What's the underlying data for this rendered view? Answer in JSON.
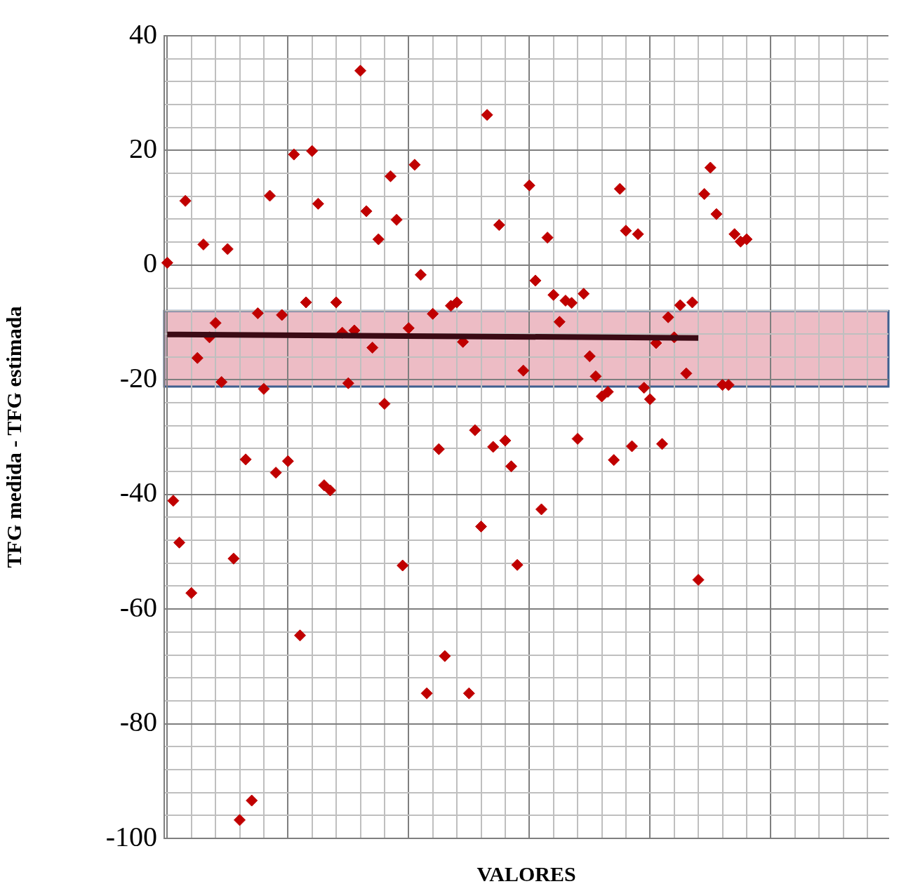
{
  "chart_data": {
    "type": "scatter",
    "xlabel": "VALORES",
    "ylabel": "TFG medida - TFG estimada",
    "categories": [
      null,
      null,
      null,
      null,
      null,
      null,
      null,
      null,
      null,
      null,
      null,
      null,
      null,
      null,
      null,
      null,
      null,
      null,
      null,
      null,
      null,
      null,
      null,
      null,
      null,
      null,
      null,
      null,
      null,
      null,
      null,
      null,
      null,
      null,
      null,
      null,
      null,
      null,
      null,
      null,
      null,
      null,
      null,
      null,
      null,
      null,
      null,
      null,
      null,
      null,
      null,
      null,
      null,
      null,
      null,
      null,
      null,
      null,
      null,
      null,
      null,
      null,
      null,
      null,
      null,
      null,
      null,
      null,
      null,
      null,
      null,
      null,
      null,
      null,
      null,
      null,
      null,
      null,
      null,
      null,
      null,
      null,
      null,
      null,
      null,
      null,
      null,
      null,
      null,
      null,
      null,
      null,
      null,
      null,
      null,
      null,
      null,
      null,
      null,
      null,
      null,
      null,
      null,
      null,
      null,
      null,
      null,
      null,
      null,
      null,
      null,
      null,
      null,
      null,
      null,
      null,
      null,
      null,
      null,
      null
    ],
    "ylim": [
      -100,
      40
    ],
    "yticks": [
      -100,
      {
        "value": -96,
        "label": null
      },
      {
        "value": -92,
        "label": null
      },
      {
        "value": -88,
        "label": null
      },
      {
        "value": -84,
        "label": null
      },
      -80,
      {
        "value": -76,
        "label": null
      },
      {
        "value": -72,
        "label": null
      },
      {
        "value": -68,
        "label": null
      },
      {
        "value": -64,
        "label": null
      },
      -60,
      {
        "value": -56,
        "label": null
      },
      {
        "value": -52,
        "label": null
      },
      {
        "value": -48,
        "label": null
      },
      {
        "value": -44,
        "label": null
      },
      -40,
      {
        "value": -36,
        "label": null
      },
      {
        "value": -32,
        "label": null
      },
      {
        "value": -28,
        "label": null
      },
      {
        "value": -24,
        "label": null
      },
      -20,
      {
        "value": -16,
        "label": null
      },
      {
        "value": -12,
        "label": null
      },
      {
        "value": -8,
        "label": null
      },
      {
        "value": -4,
        "label": null
      },
      0,
      {
        "value": 4,
        "label": null
      },
      {
        "value": 8,
        "label": null
      },
      {
        "value": 12,
        "label": null
      },
      {
        "value": 16,
        "label": null
      },
      20,
      {
        "value": 24,
        "label": null
      },
      {
        "value": 28,
        "label": null
      },
      {
        "value": 32,
        "label": null
      },
      {
        "value": 36,
        "label": null
      },
      40
    ],
    "tick_labels": "y",
    "grid": true,
    "legend": false,
    "marker": "diamond",
    "bands": [
      {
        "axis": "y",
        "from": -21.2,
        "to": -8,
        "color": "#ebb5bf"
      }
    ],
    "series": [
      {
        "type": "scatter",
        "color": "#c00000",
        "values": [
          0.4,
          -41.1,
          -48.4,
          11.2,
          -57.2,
          -16.2,
          3.6,
          -12.6,
          -10.1,
          -20.4,
          2.8,
          -51.2,
          -96.8,
          -33.9,
          -93.4,
          -8.4,
          -21.6,
          12.1,
          -36.2,
          -8.7,
          -34.2,
          19.3,
          -64.6,
          -6.5,
          19.9,
          10.7,
          -38.4,
          -39.3,
          -6.5,
          -11.8,
          -20.6,
          -11.4,
          33.9,
          9.4,
          -14.4,
          4.5,
          -24.2,
          15.5,
          7.9,
          -52.4,
          -11,
          17.5,
          -1.7,
          -74.7,
          -8.5,
          -32.1,
          -68.2,
          -7.1,
          -6.5,
          -13.4,
          -74.7,
          -28.8,
          -45.6,
          26.2,
          -31.7,
          7,
          -30.6,
          -35.1,
          -52.3,
          -18.4,
          13.9,
          -2.7,
          -42.6,
          4.8,
          -5.2,
          -9.9,
          -6.2,
          -6.6,
          -30.3,
          -5,
          -15.9,
          -19.4,
          -22.9,
          -22.1,
          -34,
          13.3,
          6,
          -31.6,
          5.4,
          -21.4,
          -23.4,
          -13.6,
          -31.2,
          -9.1,
          -12.6,
          -7,
          -18.9,
          -6.5,
          -54.9,
          12.4,
          17,
          8.9,
          -20.9,
          -20.9,
          5.4,
          4.1,
          4.5,
          null,
          null,
          null,
          null,
          null,
          null,
          null,
          null,
          null,
          null,
          null,
          null,
          null,
          null,
          null,
          null,
          null,
          null,
          null,
          null,
          null,
          null,
          null
        ]
      },
      {
        "type": "line",
        "color": "#3b0a14",
        "marker": "none",
        "values": [
          -12.1,
          null,
          null,
          null,
          null,
          null,
          null,
          null,
          null,
          null,
          null,
          null,
          null,
          null,
          null,
          null,
          null,
          null,
          null,
          null,
          null,
          null,
          null,
          null,
          null,
          null,
          null,
          null,
          null,
          null,
          null,
          null,
          null,
          null,
          null,
          null,
          null,
          null,
          null,
          null,
          null,
          null,
          null,
          null,
          null,
          null,
          null,
          null,
          null,
          null,
          null,
          null,
          null,
          null,
          null,
          null,
          null,
          null,
          null,
          null,
          null,
          null,
          null,
          null,
          null,
          null,
          null,
          null,
          null,
          null,
          null,
          null,
          null,
          null,
          null,
          null,
          null,
          null,
          null,
          null,
          null,
          null,
          null,
          null,
          null,
          null,
          null,
          null,
          -12.7,
          null,
          null,
          null,
          null,
          null,
          null,
          null,
          null,
          null,
          null,
          null,
          null,
          null,
          null,
          null,
          null,
          null,
          null,
          null,
          null,
          null,
          null,
          null,
          null,
          null,
          null,
          null,
          null,
          null,
          null,
          null
        ]
      }
    ]
  }
}
